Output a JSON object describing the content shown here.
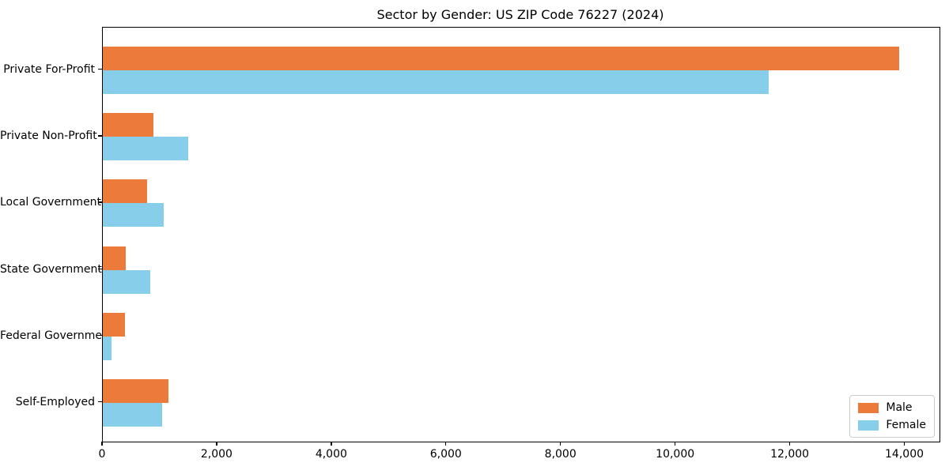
{
  "title": "Sector by Gender: US ZIP Code 76227 (2024)",
  "chart_data": {
    "type": "bar",
    "orientation": "horizontal",
    "title": "Sector by Gender: US ZIP Code 76227 (2024)",
    "categories": [
      "Private For-Profit",
      "Private Non-Profit",
      "Local Government",
      "State Government",
      "Federal Government",
      "Self-Employed"
    ],
    "series": [
      {
        "name": "Male",
        "color": "#EB7A3B",
        "values": [
          13890,
          880,
          770,
          400,
          380,
          1150
        ]
      },
      {
        "name": "Female",
        "color": "#87CEEB",
        "values": [
          11620,
          1490,
          1060,
          830,
          150,
          1030
        ]
      }
    ],
    "xlabel": "",
    "ylabel": "",
    "xlim": [
      0,
      14600
    ],
    "xticks": [
      0,
      2000,
      4000,
      6000,
      8000,
      10000,
      12000,
      14000
    ],
    "xtick_labels": [
      "0",
      "2,000",
      "4,000",
      "6,000",
      "8,000",
      "10,000",
      "12,000",
      "14,000"
    ],
    "grid": false,
    "legend_position": "lower right"
  }
}
